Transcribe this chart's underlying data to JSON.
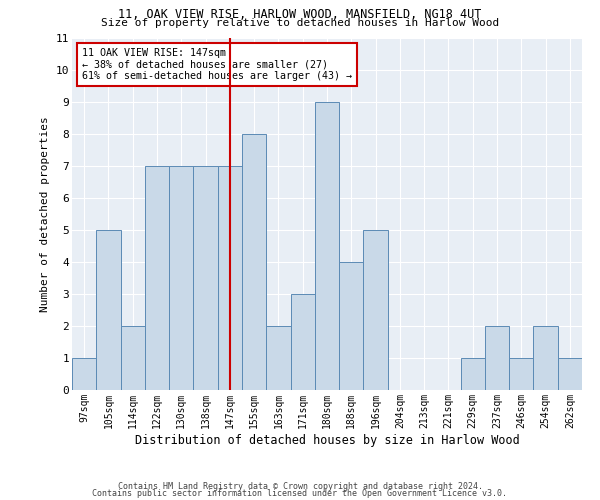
{
  "title1": "11, OAK VIEW RISE, HARLOW WOOD, MANSFIELD, NG18 4UT",
  "title2": "Size of property relative to detached houses in Harlow Wood",
  "xlabel": "Distribution of detached houses by size in Harlow Wood",
  "ylabel": "Number of detached properties",
  "footer1": "Contains HM Land Registry data © Crown copyright and database right 2024.",
  "footer2": "Contains public sector information licensed under the Open Government Licence v3.0.",
  "annotation_line1": "11 OAK VIEW RISE: 147sqm",
  "annotation_line2": "← 38% of detached houses are smaller (27)",
  "annotation_line3": "61% of semi-detached houses are larger (43) →",
  "subject_value": 147,
  "bar_color": "#c9d9e8",
  "bar_edge_color": "#5b8ab5",
  "subject_line_color": "#cc0000",
  "annotation_box_color": "#cc0000",
  "bg_color": "#e8eef5",
  "categories": [
    "97sqm",
    "105sqm",
    "114sqm",
    "122sqm",
    "130sqm",
    "138sqm",
    "147sqm",
    "155sqm",
    "163sqm",
    "171sqm",
    "180sqm",
    "188sqm",
    "196sqm",
    "204sqm",
    "213sqm",
    "221sqm",
    "229sqm",
    "237sqm",
    "246sqm",
    "254sqm",
    "262sqm"
  ],
  "values": [
    1,
    5,
    2,
    7,
    7,
    7,
    7,
    8,
    2,
    3,
    9,
    4,
    5,
    0,
    0,
    0,
    1,
    2,
    1,
    2,
    1
  ],
  "ylim": [
    0,
    11
  ],
  "yticks": [
    0,
    1,
    2,
    3,
    4,
    5,
    6,
    7,
    8,
    9,
    10,
    11
  ]
}
